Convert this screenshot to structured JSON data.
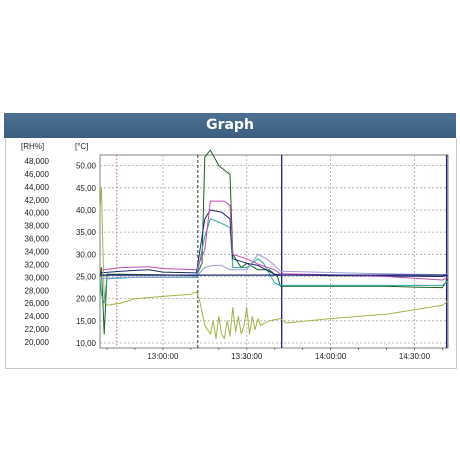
{
  "header": {
    "title": "Graph"
  },
  "chart_data": {
    "type": "line",
    "ylabel_left": "[RH%]",
    "ylabel_right": "[°C]",
    "y_rh": {
      "ticks": [
        "48,000",
        "46,000",
        "44,000",
        "42,000",
        "40,000",
        "38,000",
        "36,000",
        "34,000",
        "32,000",
        "30,000",
        "28,000",
        "26,000",
        "24,000",
        "22,000",
        "20,000"
      ],
      "ylim": [
        20000,
        48000
      ]
    },
    "y_temp": {
      "ticks": [
        "50,00",
        "45,00",
        "40,00",
        "35,00",
        "30,00",
        "25,00",
        "20,00",
        "15,00",
        "10,00"
      ],
      "ylim": [
        10,
        50
      ]
    },
    "x": {
      "ticks": [
        "13:00:00",
        "13:30:00",
        "14:00:00",
        "14:30:00"
      ],
      "xlim": [
        "12:37:30",
        "14:42:00"
      ]
    },
    "grid": true,
    "markers": [
      {
        "time": "12:43:30",
        "style": "dotted",
        "color": "#e06060"
      },
      {
        "time": "13:12:30",
        "style": "dashed",
        "color": "#303030"
      },
      {
        "time": "13:42:30",
        "style": "solid",
        "color": "#1a237e"
      },
      {
        "time": "14:41:30",
        "style": "solid",
        "color": "#1a237e"
      }
    ],
    "reference_line": {
      "value": 25.3,
      "color": "#1a237e"
    },
    "series": [
      {
        "color": "#1b5e20",
        "points": [
          [
            "12:37:30",
            25.0
          ],
          [
            "12:38",
            27
          ],
          [
            "12:39",
            12
          ],
          [
            "12:40",
            25.5
          ],
          [
            "12:45",
            25.5
          ],
          [
            "13:00",
            25.4
          ],
          [
            "13:12",
            25.2
          ],
          [
            "13:14",
            28
          ],
          [
            "13:15",
            52
          ],
          [
            "13:17",
            53.5
          ],
          [
            "13:20",
            50
          ],
          [
            "13:24",
            48
          ],
          [
            "13:25",
            30
          ],
          [
            "13:28",
            27
          ],
          [
            "13:30",
            28
          ],
          [
            "13:34",
            26.5
          ],
          [
            "13:38",
            26.5
          ],
          [
            "13:41",
            25
          ],
          [
            "13:42",
            22.8
          ],
          [
            "14:00",
            22.8
          ],
          [
            "14:20",
            22.8
          ],
          [
            "14:30",
            22.6
          ],
          [
            "14:40",
            22.5
          ],
          [
            "14:41",
            23.5
          ],
          [
            "14:42",
            24.5
          ]
        ]
      },
      {
        "color": "#26a69a",
        "points": [
          [
            "12:37:30",
            24.5
          ],
          [
            "12:38",
            21
          ],
          [
            "12:39",
            19
          ],
          [
            "12:40",
            24.5
          ],
          [
            "12:50",
            24.8
          ],
          [
            "13:12",
            24.8
          ],
          [
            "13:15",
            34
          ],
          [
            "13:17",
            38
          ],
          [
            "13:21",
            37
          ],
          [
            "13:24",
            36
          ],
          [
            "13:25",
            27
          ],
          [
            "13:30",
            27
          ],
          [
            "13:34",
            29
          ],
          [
            "13:36",
            28
          ],
          [
            "13:40",
            23.5
          ],
          [
            "13:42",
            23.0
          ],
          [
            "14:40",
            23.0
          ],
          [
            "14:42",
            24.0
          ]
        ]
      },
      {
        "color": "#1b2a6b",
        "points": [
          [
            "12:37:30",
            25.8
          ],
          [
            "12:45",
            26.2
          ],
          [
            "12:55",
            26.5
          ],
          [
            "13:00",
            26.0
          ],
          [
            "13:12",
            25.8
          ],
          [
            "13:15",
            38
          ],
          [
            "13:17",
            40
          ],
          [
            "13:21",
            39.5
          ],
          [
            "13:24",
            38
          ],
          [
            "13:25",
            29
          ],
          [
            "13:30",
            28
          ],
          [
            "13:34",
            27.5
          ],
          [
            "13:40",
            25.5
          ],
          [
            "13:42",
            25.4
          ],
          [
            "14:00",
            25.2
          ],
          [
            "14:40",
            25.0
          ],
          [
            "14:42",
            25.4
          ]
        ]
      },
      {
        "color": "#c24cb2",
        "points": [
          [
            "12:37:30",
            26.4
          ],
          [
            "12:45",
            27.0
          ],
          [
            "12:55",
            27.2
          ],
          [
            "13:00",
            26.8
          ],
          [
            "13:12",
            26.5
          ],
          [
            "13:15",
            31
          ],
          [
            "13:17",
            42
          ],
          [
            "13:22",
            42
          ],
          [
            "13:24",
            41
          ],
          [
            "13:25",
            30
          ],
          [
            "13:30",
            29
          ],
          [
            "13:34",
            27.8
          ],
          [
            "13:40",
            26.5
          ],
          [
            "13:42",
            25.6
          ],
          [
            "14:00",
            25.4
          ],
          [
            "14:20",
            25.0
          ],
          [
            "14:40",
            24.2
          ],
          [
            "14:42",
            24.8
          ]
        ]
      },
      {
        "color": "#a6b246",
        "points": [
          [
            "12:37:30",
            40
          ],
          [
            "12:38",
            45
          ],
          [
            "12:39",
            20
          ],
          [
            "12:40",
            18.5
          ],
          [
            "12:45",
            19.0
          ],
          [
            "12:50",
            20
          ],
          [
            "13:00",
            20.5
          ],
          [
            "13:10",
            21
          ],
          [
            "13:12",
            21.5
          ],
          [
            "13:13",
            20
          ],
          [
            "13:14",
            17
          ],
          [
            "13:15",
            14
          ],
          [
            "13:17",
            12
          ],
          [
            "13:18",
            15
          ],
          [
            "13:19",
            11
          ],
          [
            "13:20",
            16
          ],
          [
            "13:21",
            12
          ],
          [
            "13:22",
            11
          ],
          [
            "13:23",
            15
          ],
          [
            "13:24",
            11.5
          ],
          [
            "13:25",
            18
          ],
          [
            "13:26",
            12.5
          ],
          [
            "13:27",
            16
          ],
          [
            "13:28",
            12
          ],
          [
            "13:29",
            14
          ],
          [
            "13:30",
            18
          ],
          [
            "13:31",
            12
          ],
          [
            "13:32",
            16
          ],
          [
            "13:33",
            13
          ],
          [
            "13:34",
            15.5
          ],
          [
            "13:35",
            14
          ],
          [
            "13:38",
            15
          ],
          [
            "13:42",
            15.5
          ],
          [
            "13:44",
            14.5
          ],
          [
            "14:00",
            15.5
          ],
          [
            "14:20",
            16.5
          ],
          [
            "14:30",
            17.5
          ],
          [
            "14:40",
            18.5
          ],
          [
            "14:42",
            19.5
          ]
        ]
      },
      {
        "color": "#9b9bd6",
        "points": [
          [
            "12:37:30",
            24.5
          ],
          [
            "12:45",
            24.8
          ],
          [
            "13:10",
            24.9
          ],
          [
            "13:12",
            25
          ],
          [
            "13:15",
            27
          ],
          [
            "13:18",
            27.5
          ],
          [
            "13:21",
            27.5
          ],
          [
            "13:24",
            26.5
          ],
          [
            "13:30",
            26.5
          ],
          [
            "13:34",
            30
          ],
          [
            "13:37",
            29
          ],
          [
            "13:40",
            27.5
          ],
          [
            "13:42",
            26.2
          ],
          [
            "14:00",
            25.9
          ],
          [
            "14:20",
            25.6
          ],
          [
            "14:40",
            25.4
          ],
          [
            "14:42",
            25.6
          ]
        ]
      }
    ]
  }
}
